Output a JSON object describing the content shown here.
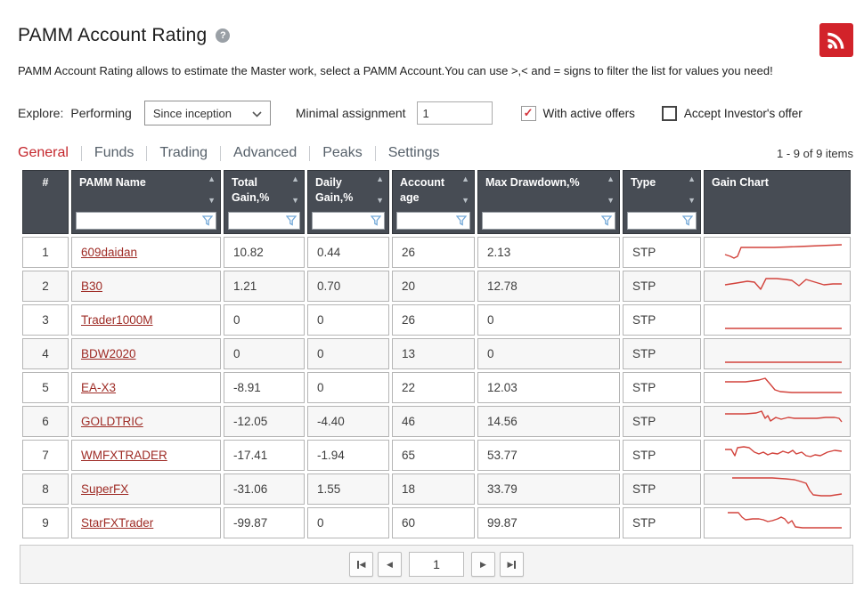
{
  "page": {
    "title": "PAMM Account Rating",
    "description": "PAMM Account Rating allows to estimate the Master work, select a PAMM Account.You can use >,< and = signs to filter the list for values you need!",
    "items_count": "1 - 9 of 9 items"
  },
  "controls": {
    "explore_label": "Explore:",
    "performing_label": "Performing",
    "period_select_value": "Since inception",
    "minimal_assignment_label": "Minimal assignment",
    "minimal_assignment_value": "1",
    "checkbox_active_offers": {
      "label": "With active offers",
      "checked": true
    },
    "checkbox_accept_investor": {
      "label": "Accept Investor's offer",
      "checked": false
    }
  },
  "tabs": [
    {
      "label": "General",
      "active": true
    },
    {
      "label": "Funds",
      "active": false
    },
    {
      "label": "Trading",
      "active": false
    },
    {
      "label": "Advanced",
      "active": false
    },
    {
      "label": "Peaks",
      "active": false
    },
    {
      "label": "Settings",
      "active": false
    }
  ],
  "table": {
    "columns": [
      {
        "key": "index",
        "label": "#",
        "sortable": false,
        "filterable": false,
        "width": 52
      },
      {
        "key": "name",
        "label": "PAMM Name",
        "sortable": true,
        "filterable": true,
        "width": 168
      },
      {
        "key": "total_gain",
        "label": "Total Gain,%",
        "sortable": true,
        "filterable": true,
        "width": 91
      },
      {
        "key": "daily_gain",
        "label": "Daily Gain,%",
        "sortable": true,
        "filterable": true,
        "width": 92
      },
      {
        "key": "account_age",
        "label": "Account age",
        "sortable": true,
        "filterable": true,
        "width": 93
      },
      {
        "key": "max_drawdown",
        "label": "Max Drawdown,%",
        "sortable": true,
        "filterable": true,
        "width": 160
      },
      {
        "key": "type",
        "label": "Type",
        "sortable": true,
        "filterable": true,
        "width": 88
      },
      {
        "key": "gain_chart",
        "label": "Gain Chart",
        "sortable": false,
        "filterable": false,
        "width": 165
      }
    ],
    "rows": [
      {
        "index": "1",
        "name": "609daidan",
        "total_gain": "10.82",
        "daily_gain": "0.44",
        "account_age": "26",
        "max_drawdown": "2.13",
        "type": "STP",
        "spark": [
          [
            17,
            19
          ],
          [
            23,
            21
          ],
          [
            27,
            23
          ],
          [
            31,
            21
          ],
          [
            35,
            11
          ],
          [
            48,
            11
          ],
          [
            72,
            11
          ],
          [
            100,
            10
          ],
          [
            124,
            9
          ],
          [
            148,
            8
          ]
        ]
      },
      {
        "index": "2",
        "name": "B30",
        "total_gain": "1.21",
        "daily_gain": "0.70",
        "account_age": "20",
        "max_drawdown": "12.78",
        "type": "STP",
        "spark": [
          [
            17,
            15
          ],
          [
            30,
            13
          ],
          [
            42,
            11
          ],
          [
            50,
            12
          ],
          [
            57,
            20
          ],
          [
            63,
            8
          ],
          [
            75,
            8
          ],
          [
            85,
            9
          ],
          [
            92,
            10
          ],
          [
            100,
            16
          ],
          [
            108,
            9
          ],
          [
            118,
            12
          ],
          [
            128,
            15
          ],
          [
            138,
            14
          ],
          [
            148,
            14
          ]
        ]
      },
      {
        "index": "3",
        "name": "Trader1000M",
        "total_gain": "0",
        "daily_gain": "0",
        "account_age": "26",
        "max_drawdown": "0",
        "type": "STP",
        "spark": [
          [
            17,
            26
          ],
          [
            148,
            26
          ]
        ]
      },
      {
        "index": "4",
        "name": "BDW2020",
        "total_gain": "0",
        "daily_gain": "0",
        "account_age": "13",
        "max_drawdown": "0",
        "type": "STP",
        "spark": [
          [
            17,
            26
          ],
          [
            148,
            26
          ]
        ]
      },
      {
        "index": "5",
        "name": "EA-X3",
        "total_gain": "-8.91",
        "daily_gain": "0",
        "account_age": "22",
        "max_drawdown": "12.03",
        "type": "STP",
        "spark": [
          [
            17,
            10
          ],
          [
            40,
            10
          ],
          [
            55,
            8
          ],
          [
            62,
            6
          ],
          [
            68,
            13
          ],
          [
            73,
            19
          ],
          [
            79,
            21
          ],
          [
            92,
            22
          ],
          [
            148,
            22
          ]
        ]
      },
      {
        "index": "6",
        "name": "GOLDTRIC",
        "total_gain": "-12.05",
        "daily_gain": "-4.40",
        "account_age": "46",
        "max_drawdown": "14.56",
        "type": "STP",
        "spark": [
          [
            17,
            8
          ],
          [
            40,
            8
          ],
          [
            52,
            7
          ],
          [
            58,
            5
          ],
          [
            62,
            13
          ],
          [
            65,
            10
          ],
          [
            68,
            16
          ],
          [
            74,
            12
          ],
          [
            80,
            14
          ],
          [
            88,
            12
          ],
          [
            95,
            13
          ],
          [
            108,
            13
          ],
          [
            120,
            13
          ],
          [
            130,
            12
          ],
          [
            140,
            12
          ],
          [
            145,
            13
          ],
          [
            148,
            17
          ]
        ]
      },
      {
        "index": "7",
        "name": "WMFXTRADER",
        "total_gain": "-17.41",
        "daily_gain": "-1.94",
        "account_age": "65",
        "max_drawdown": "53.77",
        "type": "STP",
        "spark": [
          [
            17,
            10
          ],
          [
            24,
            10
          ],
          [
            28,
            17
          ],
          [
            31,
            8
          ],
          [
            38,
            7
          ],
          [
            44,
            8
          ],
          [
            50,
            13
          ],
          [
            55,
            15
          ],
          [
            60,
            13
          ],
          [
            65,
            16
          ],
          [
            70,
            14
          ],
          [
            76,
            15
          ],
          [
            82,
            12
          ],
          [
            88,
            14
          ],
          [
            93,
            11
          ],
          [
            97,
            15
          ],
          [
            103,
            13
          ],
          [
            108,
            17
          ],
          [
            113,
            18
          ],
          [
            118,
            16
          ],
          [
            124,
            17
          ],
          [
            132,
            13
          ],
          [
            140,
            11
          ],
          [
            148,
            12
          ]
        ]
      },
      {
        "index": "8",
        "name": "SuperFX",
        "total_gain": "-31.06",
        "daily_gain": "1.55",
        "account_age": "18",
        "max_drawdown": "33.79",
        "type": "STP",
        "spark": [
          [
            25,
            4
          ],
          [
            70,
            4
          ],
          [
            85,
            5
          ],
          [
            95,
            6
          ],
          [
            102,
            8
          ],
          [
            108,
            10
          ],
          [
            112,
            18
          ],
          [
            116,
            23
          ],
          [
            125,
            24
          ],
          [
            135,
            24
          ],
          [
            148,
            22
          ]
        ]
      },
      {
        "index": "9",
        "name": "StarFXTrader",
        "total_gain": "-99.87",
        "daily_gain": "0",
        "account_age": "60",
        "max_drawdown": "99.87",
        "type": "STP",
        "spark": [
          [
            20,
            5
          ],
          [
            32,
            5
          ],
          [
            36,
            10
          ],
          [
            40,
            13
          ],
          [
            48,
            12
          ],
          [
            55,
            12
          ],
          [
            60,
            13
          ],
          [
            65,
            15
          ],
          [
            70,
            14
          ],
          [
            76,
            12
          ],
          [
            80,
            10
          ],
          [
            84,
            12
          ],
          [
            88,
            17
          ],
          [
            92,
            14
          ],
          [
            96,
            21
          ],
          [
            104,
            22
          ],
          [
            148,
            22
          ]
        ]
      }
    ]
  },
  "pagination": {
    "page_value": "1"
  },
  "colors": {
    "header_bg": "#474c54",
    "active_tab": "#c4262c",
    "link": "#9e2b25",
    "sparkline": "#d2423b",
    "filter_icon": "#74a9d8",
    "rss_red": "#d2232a",
    "check_red": "#d4333a"
  }
}
